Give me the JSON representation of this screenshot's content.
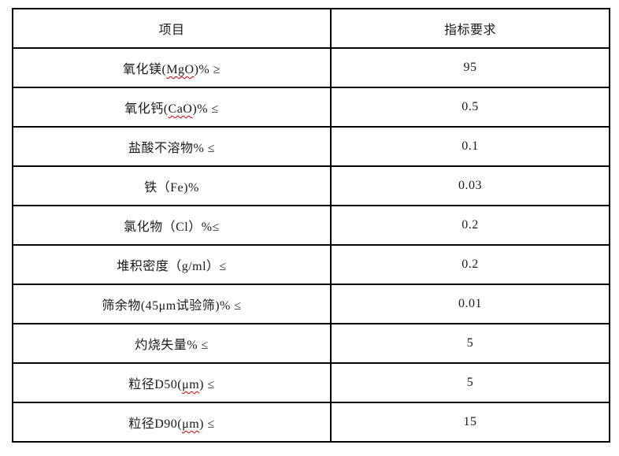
{
  "page": {
    "background_color": "#ffffff",
    "border_color": "#000000",
    "text_color": "#1a1a1a",
    "squiggle_color": "#cc0000"
  },
  "table": {
    "columns": [
      {
        "label": "项目"
      },
      {
        "label": "指标要求"
      }
    ],
    "rows": [
      {
        "item_prefix": "氧化镁(",
        "item_marked": "MgO",
        "item_suffix": ")% ≥",
        "value": "95"
      },
      {
        "item_prefix": "氧化钙(",
        "item_marked": "CaO",
        "item_suffix": ")% ≤",
        "value": "0.5"
      },
      {
        "item_prefix": "盐酸不溶物% ≤",
        "item_marked": "",
        "item_suffix": "",
        "value": "0.1"
      },
      {
        "item_prefix": "铁（Fe)%",
        "item_marked": "",
        "item_suffix": "",
        "value": "0.03"
      },
      {
        "item_prefix": "氯化物（Cl）%≤",
        "item_marked": "",
        "item_suffix": "",
        "value": "0.2"
      },
      {
        "item_prefix": "堆积密度（g/ml）≤",
        "item_marked": "",
        "item_suffix": "",
        "value": "0.2"
      },
      {
        "item_prefix": "筛余物(45μm试验筛)% ≤",
        "item_marked": "",
        "item_suffix": "",
        "value": "0.01"
      },
      {
        "item_prefix": "灼烧失量% ≤",
        "item_marked": "",
        "item_suffix": "",
        "value": "5"
      },
      {
        "item_prefix": "粒径D50(",
        "item_marked": "μm",
        "item_suffix": ") ≤",
        "value": "5"
      },
      {
        "item_prefix": "粒径D90(",
        "item_marked": "μm",
        "item_suffix": ") ≤",
        "value": "15"
      }
    ]
  }
}
